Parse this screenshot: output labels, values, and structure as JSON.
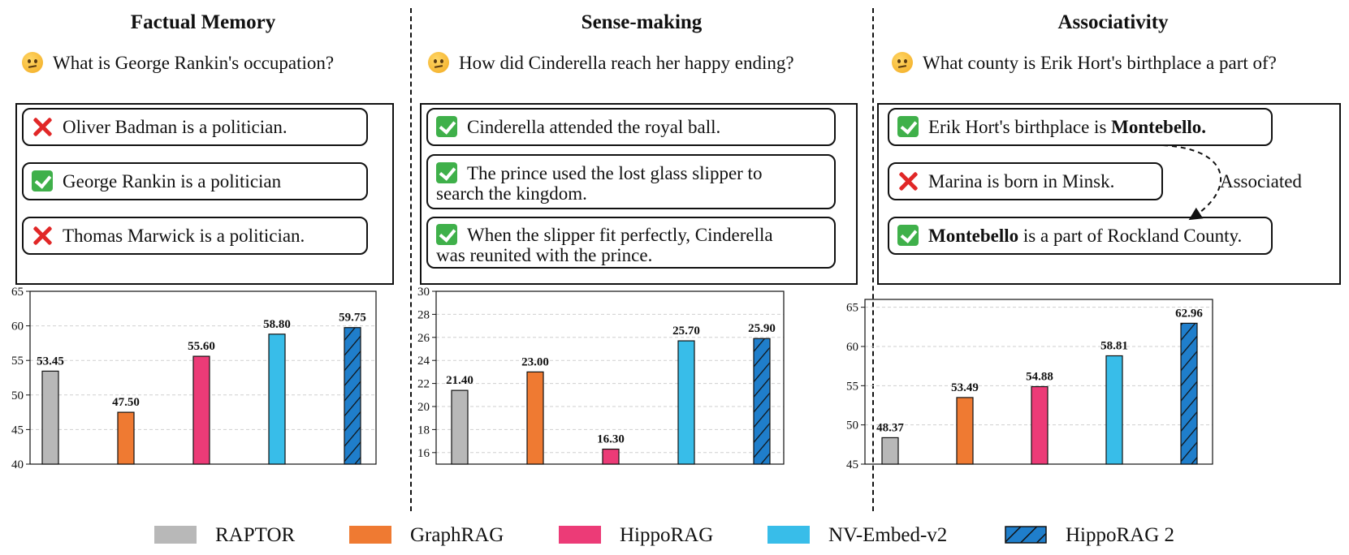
{
  "colors": {
    "RAPTOR": "#b8b8b8",
    "GraphRAG": "#ef7a32",
    "HippoRAG": "#ec3b77",
    "NV-Embed-v2": "#38bde9",
    "HippoRAG 2": "#1f7ecb"
  },
  "panels": [
    {
      "title": "Factual Memory",
      "question": "What is George Rankin's occupation?",
      "statements": [
        {
          "mark": "cross",
          "text": "Oliver Badman is a politician."
        },
        {
          "mark": "check",
          "text": "George Rankin is a politician"
        },
        {
          "mark": "cross",
          "text": "Thomas Marwick is a politician."
        }
      ]
    },
    {
      "title": "Sense-making",
      "question": "How did Cinderella reach her happy ending?",
      "statements": [
        {
          "mark": "check",
          "text": "Cinderella attended the royal ball."
        },
        {
          "mark": "check",
          "line1": "The prince used the lost glass slipper to",
          "line2": "search the kingdom."
        },
        {
          "mark": "check",
          "line1": "When the slipper fit perfectly, Cinderella",
          "line2": "was reunited with the prince."
        }
      ]
    },
    {
      "title": "Associativity",
      "question": "What county is Erik Hort's birthplace a part of?",
      "statements": [
        {
          "mark": "check",
          "pre": "Erik Hort's birthplace is ",
          "bold": "Montebello."
        },
        {
          "mark": "cross",
          "text": "Marina is born in Minsk."
        },
        {
          "mark": "check",
          "bold": "Montebello",
          "post": " is a part of Rockland County."
        }
      ],
      "assoc_label": "Associated"
    }
  ],
  "chart_data": [
    {
      "type": "bar",
      "title": "Factual Memory",
      "categories": [
        "RAPTOR",
        "GraphRAG",
        "HippoRAG",
        "NV-Embed-v2",
        "HippoRAG 2"
      ],
      "values": [
        53.45,
        47.5,
        55.6,
        58.8,
        59.75
      ],
      "labels": [
        "53.45",
        "47.50",
        "55.60",
        "58.80",
        "59.75"
      ],
      "ylim": [
        40,
        65
      ],
      "yticks": [
        40,
        45,
        50,
        55,
        60,
        65
      ],
      "ytick_labels": [
        "40",
        "45",
        "50",
        "55",
        "60",
        "65"
      ],
      "grid": true
    },
    {
      "type": "bar",
      "title": "Sense-making",
      "categories": [
        "RAPTOR",
        "GraphRAG",
        "HippoRAG",
        "NV-Embed-v2",
        "HippoRAG 2"
      ],
      "values": [
        21.4,
        23.0,
        16.3,
        25.7,
        25.9
      ],
      "labels": [
        "21.40",
        "23.00",
        "16.30",
        "25.70",
        "25.90"
      ],
      "ylim": [
        15,
        30
      ],
      "yticks": [
        16,
        18,
        20,
        22,
        24,
        26,
        28,
        30
      ],
      "ytick_labels": [
        "16",
        "18",
        "20",
        "22",
        "24",
        "26",
        "28",
        "30"
      ],
      "grid": true
    },
    {
      "type": "bar",
      "title": "Associativity",
      "categories": [
        "RAPTOR",
        "GraphRAG",
        "HippoRAG",
        "NV-Embed-v2",
        "HippoRAG 2"
      ],
      "values": [
        48.37,
        53.49,
        54.88,
        58.81,
        62.96
      ],
      "labels": [
        "48.37",
        "53.49",
        "54.88",
        "58.81",
        "62.96"
      ],
      "ylim": [
        45,
        66
      ],
      "yticks": [
        45,
        50,
        55,
        60,
        65
      ],
      "ytick_labels": [
        "45",
        "50",
        "55",
        "60",
        "65"
      ],
      "grid": true
    }
  ],
  "legend": [
    "RAPTOR",
    "GraphRAG",
    "HippoRAG",
    "NV-Embed-v2",
    "HippoRAG 2"
  ]
}
